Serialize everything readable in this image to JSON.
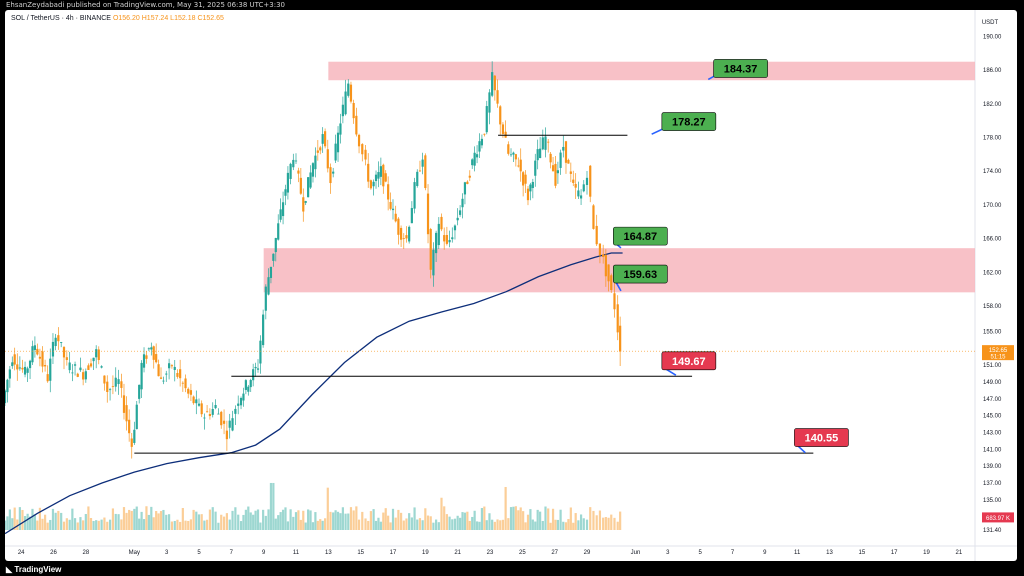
{
  "header": {
    "publisher_line": "EhsanZeydabadi published on TradingView.com, May 31, 2025 06:38 UTC+3:30"
  },
  "legend": {
    "symbol": "SOL / TetherUS · 4h · BINANCE",
    "open": "O156.20",
    "high": "H157.24",
    "low": "L152.18",
    "close": "C152.65"
  },
  "footer": {
    "logo_text": "TradingView"
  },
  "chart_data": {
    "type": "candlestick",
    "currency": "USDT",
    "y_ticks": [
      "190.00",
      "186.00",
      "182.00",
      "178.00",
      "174.00",
      "170.00",
      "166.00",
      "162.00",
      "158.00",
      "155.00",
      "151.00",
      "149.00",
      "147.00",
      "145.00",
      "143.00",
      "141.00",
      "139.00",
      "137.00",
      "135.00",
      "133.00",
      "131.40"
    ],
    "ylim": [
      130,
      191
    ],
    "x_ticks": [
      "24",
      "26",
      "28",
      "May",
      "3",
      "5",
      "7",
      "9",
      "11",
      "13",
      "15",
      "17",
      "19",
      "21",
      "23",
      "25",
      "27",
      "29",
      "Jun",
      "3",
      "5",
      "7",
      "9",
      "11",
      "13",
      "15",
      "17",
      "19",
      "21"
    ],
    "x_tick_days": [
      -7,
      -5,
      -3,
      0,
      2,
      4,
      6,
      8,
      10,
      12,
      14,
      16,
      18,
      20,
      22,
      24,
      26,
      28,
      31,
      33,
      35,
      37,
      39,
      41,
      43,
      45,
      47,
      49,
      51
    ],
    "xlim_days": [
      -8,
      52
    ],
    "colors": {
      "up": "#26a69a",
      "down": "#f7931a",
      "ma": "#0d2e7a",
      "zone": "#f7b6bd",
      "green_label": "#4caf50",
      "red_label": "#e53950"
    },
    "current_price": {
      "value": "152.65",
      "countdown": "51:15"
    },
    "volume_label": "683.97 K",
    "zones": [
      {
        "from": 184.8,
        "to": 187.0,
        "start_day": 12.0
      },
      {
        "from": 159.63,
        "to": 164.87,
        "start_day": 8.0
      }
    ],
    "levels": [
      {
        "value": 178.27,
        "start_day": 22.5,
        "end_day": 30.5
      },
      {
        "value": 149.67,
        "start_day": 6.0,
        "end_day": 34.5
      },
      {
        "value": 140.55,
        "start_day": 0.0,
        "end_day": 42.0
      }
    ],
    "labels": [
      {
        "text": "184.37",
        "price": 186.2,
        "day": 37.5,
        "color": "green",
        "arrow_to": [
          35.5,
          184.9
        ]
      },
      {
        "text": "178.27",
        "price": 179.9,
        "day": 34.3,
        "color": "green",
        "arrow_to": [
          32.0,
          178.4
        ]
      },
      {
        "text": "164.87",
        "price": 166.3,
        "day": 31.3,
        "color": "green",
        "arrow_to": [
          30.1,
          164.9
        ]
      },
      {
        "text": "159.63",
        "price": 161.8,
        "day": 31.3,
        "color": "green",
        "arrow_to": [
          30.1,
          159.8
        ]
      },
      {
        "text": "149.67",
        "price": 151.5,
        "day": 34.3,
        "color": "red",
        "arrow_to": [
          33.5,
          149.8
        ]
      },
      {
        "text": "140.55",
        "price": 142.4,
        "day": 42.5,
        "color": "red",
        "arrow_to": [
          41.5,
          140.6
        ]
      }
    ],
    "anchors": [
      [
        -8.0,
        146.5
      ],
      [
        -7.4,
        152.0
      ],
      [
        -6.6,
        150.0
      ],
      [
        -6.0,
        153.5
      ],
      [
        -5.2,
        149.5
      ],
      [
        -4.7,
        155.0
      ],
      [
        -4.0,
        151.0
      ],
      [
        -3.0,
        150.0
      ],
      [
        -2.2,
        152.5
      ],
      [
        -1.5,
        148.0
      ],
      [
        -0.8,
        149.0
      ],
      [
        0.0,
        141.5
      ],
      [
        0.6,
        151.0
      ],
      [
        1.2,
        153.5
      ],
      [
        1.8,
        149.0
      ],
      [
        2.5,
        151.0
      ],
      [
        3.5,
        147.5
      ],
      [
        4.5,
        145.0
      ],
      [
        5.2,
        146.0
      ],
      [
        5.9,
        143.0
      ],
      [
        6.6,
        147.0
      ],
      [
        7.2,
        149.0
      ],
      [
        7.8,
        151.0
      ],
      [
        8.3,
        160.0
      ],
      [
        8.9,
        166.0
      ],
      [
        9.5,
        172.0
      ],
      [
        10.0,
        176.0
      ],
      [
        10.6,
        170.0
      ],
      [
        11.2,
        175.0
      ],
      [
        11.8,
        178.0
      ],
      [
        12.3,
        173.0
      ],
      [
        12.9,
        180.0
      ],
      [
        13.4,
        184.5
      ],
      [
        13.9,
        179.0
      ],
      [
        14.3,
        176.0
      ],
      [
        14.8,
        172.0
      ],
      [
        15.4,
        174.0
      ],
      [
        16.0,
        170.0
      ],
      [
        16.5,
        167.0
      ],
      [
        17.0,
        166.0
      ],
      [
        17.5,
        172.0
      ],
      [
        18.0,
        176.0
      ],
      [
        18.5,
        162.0
      ],
      [
        19.0,
        168.0
      ],
      [
        19.5,
        165.0
      ],
      [
        20.0,
        167.5
      ],
      [
        20.6,
        172.0
      ],
      [
        21.2,
        176.0
      ],
      [
        21.8,
        179.0
      ],
      [
        22.3,
        185.0
      ],
      [
        22.8,
        180.0
      ],
      [
        23.3,
        176.0
      ],
      [
        23.9,
        175.0
      ],
      [
        24.5,
        171.0
      ],
      [
        25.1,
        176.0
      ],
      [
        25.6,
        178.0
      ],
      [
        26.2,
        173.0
      ],
      [
        26.7,
        177.0
      ],
      [
        27.3,
        172.0
      ],
      [
        27.8,
        171.0
      ],
      [
        28.2,
        174.0
      ],
      [
        28.6,
        167.0
      ],
      [
        29.0,
        164.5
      ],
      [
        29.5,
        161.0
      ],
      [
        29.9,
        158.0
      ],
      [
        30.2,
        152.6
      ]
    ],
    "moving_average": [
      [
        -8.0,
        131.0
      ],
      [
        -6.0,
        133.4
      ],
      [
        -4.0,
        135.5
      ],
      [
        -2.0,
        137.0
      ],
      [
        0.0,
        138.3
      ],
      [
        2.0,
        139.3
      ],
      [
        4.0,
        140.0
      ],
      [
        6.0,
        140.6
      ],
      [
        7.5,
        141.5
      ],
      [
        9.0,
        143.4
      ],
      [
        11.0,
        147.5
      ],
      [
        13.0,
        151.3
      ],
      [
        15.0,
        154.3
      ],
      [
        17.0,
        156.2
      ],
      [
        19.0,
        157.3
      ],
      [
        21.0,
        158.3
      ],
      [
        23.0,
        159.7
      ],
      [
        25.0,
        161.5
      ],
      [
        27.0,
        162.9
      ],
      [
        28.5,
        163.8
      ],
      [
        29.5,
        164.3
      ],
      [
        30.2,
        164.3
      ]
    ],
    "volume_spikes": [
      {
        "day": 8.5,
        "level": 0.7
      },
      {
        "day": 12.0,
        "level": 0.63
      },
      {
        "day": 19.0,
        "level": 0.48
      },
      {
        "day": 23.0,
        "level": 0.64
      }
    ]
  }
}
